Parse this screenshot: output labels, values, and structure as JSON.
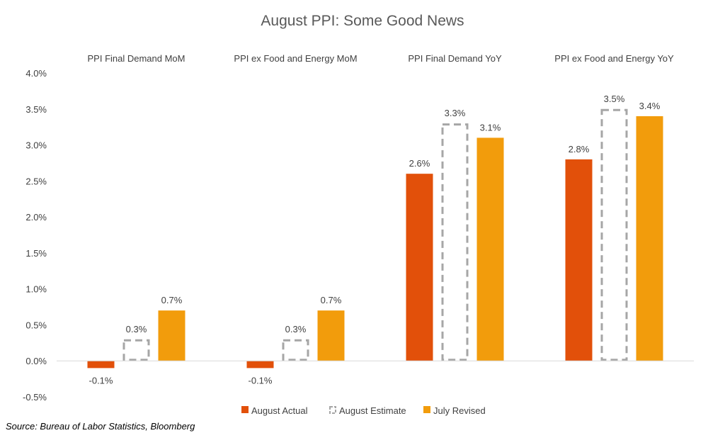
{
  "chart_data": {
    "type": "bar",
    "title": "August PPI: Some Good News",
    "categories": [
      "PPI Final Demand MoM",
      "PPI ex Food and Energy MoM",
      "PPI Final Demand YoY",
      "PPI ex Food and Energy YoY"
    ],
    "series": [
      {
        "name": "August Actual",
        "values": [
          -0.1,
          -0.1,
          2.6,
          2.8
        ],
        "labels": [
          "-0.1%",
          "-0.1%",
          "2.6%",
          "2.8%"
        ],
        "color": "#E2500A",
        "style": "solid"
      },
      {
        "name": "August Estimate",
        "values": [
          0.3,
          0.3,
          3.3,
          3.5
        ],
        "labels": [
          "0.3%",
          "0.3%",
          "3.3%",
          "3.5%"
        ],
        "color": "#A6A6A6",
        "style": "dashed-outline"
      },
      {
        "name": "July Revised",
        "values": [
          0.7,
          0.7,
          3.1,
          3.4
        ],
        "labels": [
          "0.7%",
          "0.7%",
          "3.1%",
          "3.4%"
        ],
        "color": "#F29C0C",
        "style": "solid"
      }
    ],
    "ylim": [
      -0.5,
      4.0
    ],
    "yticks": [
      "-0.5%",
      "0.0%",
      "0.5%",
      "1.0%",
      "1.5%",
      "2.0%",
      "2.5%",
      "3.0%",
      "3.5%",
      "4.0%"
    ],
    "xlabel": "",
    "ylabel": "",
    "grid": false,
    "legend_position": "bottom",
    "source": "Source: Bureau of Labor Statistics, Bloomberg"
  }
}
